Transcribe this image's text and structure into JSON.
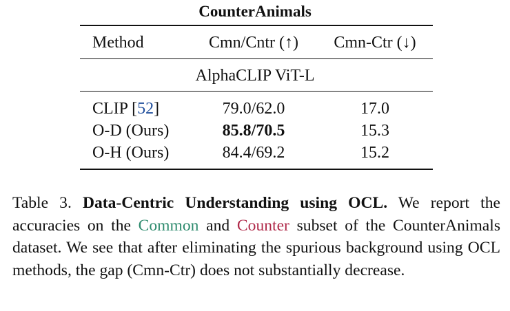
{
  "table": {
    "title": "CounterAnimals",
    "headers": {
      "method": "Method",
      "ratio": "Cmn/Cntr (↑)",
      "gap": "Cmn-Ctr (↓)"
    },
    "section_label": "AlphaCLIP ViT-L",
    "rows": [
      {
        "method": "CLIP",
        "ref": "52",
        "ratio": "79.0/62.0",
        "gap": "17.0"
      },
      {
        "method": "O-D (Ours)",
        "ratio": "85.8/70.5",
        "gap": "15.3"
      },
      {
        "method": "O-H (Ours)",
        "ratio": "84.4/69.2",
        "gap": "15.2"
      }
    ]
  },
  "caption": {
    "label": "Table 3.",
    "bold_title": "Data-Centric Understanding using OCL.",
    "text1": "We report the accuracies on the",
    "common": "Common",
    "text2": "and",
    "counter": "Counter",
    "text3": "subset of the CounterAnimals dataset.  We see that after eliminating the spurious background using OCL methods, the gap (Cmn-Ctr) does not substantially decrease."
  },
  "colors": {
    "common": "#2e8b6e",
    "counter": "#b02a4a",
    "reference_link": "#1f4e9c"
  }
}
